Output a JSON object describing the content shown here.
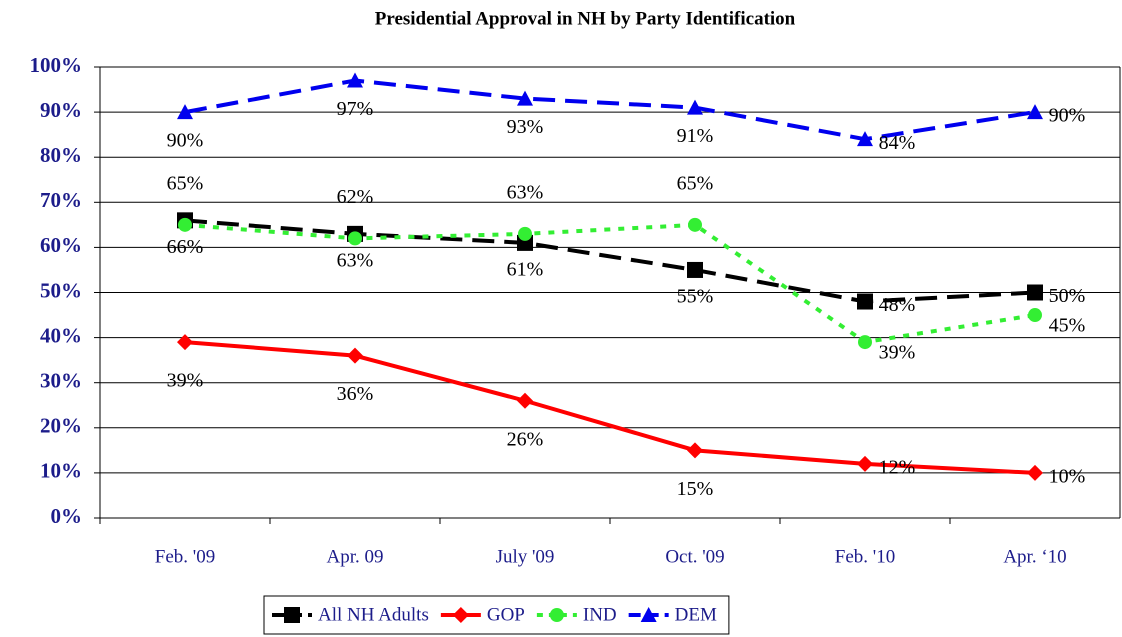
{
  "chart_data": {
    "type": "line",
    "title": "Presidential Approval in NH by Party Identification",
    "categories": [
      "Feb. '09",
      "Apr. 09",
      "July '09",
      "Oct. '09",
      "Feb. '10",
      "Apr. ‘10"
    ],
    "series": [
      {
        "name": "All NH Adults",
        "color": "#000000",
        "line_style": "dashed",
        "marker": "square",
        "values": [
          66,
          63,
          61,
          55,
          48,
          50
        ],
        "value_labels": [
          "66%",
          "63%",
          "61%",
          "55%",
          "48%",
          "50%"
        ]
      },
      {
        "name": "GOP",
        "color": "#ff0000",
        "line_style": "solid",
        "marker": "diamond",
        "values": [
          39,
          36,
          26,
          15,
          12,
          10
        ],
        "value_labels": [
          "39%",
          "36%",
          "26%",
          "15%",
          "12%",
          "10%"
        ]
      },
      {
        "name": "IND",
        "color": "#33ee33",
        "line_style": "dotted",
        "marker": "circle",
        "values": [
          65,
          62,
          63,
          65,
          39,
          45
        ],
        "value_labels": [
          "65%",
          "62%",
          "63%",
          "65%",
          "39%",
          "45%"
        ]
      },
      {
        "name": "DEM",
        "color": "#0000ee",
        "line_style": "dashed",
        "marker": "triangle",
        "values": [
          90,
          97,
          93,
          91,
          84,
          90
        ],
        "value_labels": [
          "90%",
          "97%",
          "93%",
          "91%",
          "84%",
          "90%"
        ]
      }
    ],
    "ylim": [
      0,
      100
    ],
    "yticks": [
      {
        "value": 0,
        "label": "0%"
      },
      {
        "value": 10,
        "label": "10%"
      },
      {
        "value": 20,
        "label": "20%"
      },
      {
        "value": 30,
        "label": "30%"
      },
      {
        "value": 40,
        "label": "40%"
      },
      {
        "value": 50,
        "label": "50%"
      },
      {
        "value": 60,
        "label": "60%"
      },
      {
        "value": 70,
        "label": "70%"
      },
      {
        "value": 80,
        "label": "80%"
      },
      {
        "value": 90,
        "label": "90%"
      },
      {
        "value": 100,
        "label": "100%"
      }
    ],
    "grid": true,
    "legend": "bottom"
  }
}
